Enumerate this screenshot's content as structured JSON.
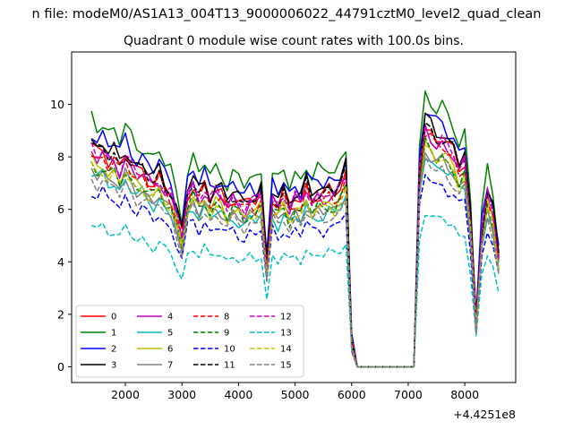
{
  "chart_data": {
    "type": "line",
    "suptitle": "n file: modeM0/AS1A13_004T13_9000006022_44791cztM0_level2_quad_clean",
    "title": "Quadrant 0 module wise count rates with 100.0s bins.",
    "xlabel": "",
    "ylabel": "",
    "x_offset_label": "+4.4251e8",
    "xlim": [
      1050,
      8900
    ],
    "ylim": [
      -0.6,
      12.0
    ],
    "x_ticks": [
      2000,
      3000,
      4000,
      5000,
      6000,
      7000,
      8000
    ],
    "y_ticks": [
      0,
      2,
      4,
      6,
      8,
      10
    ],
    "legend": {
      "placement": "lower-left",
      "columns": 4
    },
    "colors": {
      "0": "#ff0000",
      "1": "#008000",
      "2": "#0000ff",
      "3": "#000000",
      "4": "#bf00bf",
      "5": "#00bfbf",
      "6": "#bfbf00",
      "7": "#808080"
    },
    "series": [
      {
        "name": "0",
        "color": "#ff0000",
        "dashed": false,
        "scale": 1.0
      },
      {
        "name": "1",
        "color": "#008000",
        "dashed": false,
        "scale": 1.13
      },
      {
        "name": "2",
        "color": "#0000ff",
        "dashed": false,
        "scale": 1.07
      },
      {
        "name": "3",
        "color": "#000000",
        "dashed": false,
        "scale": 1.03
      },
      {
        "name": "4",
        "color": "#bf00bf",
        "dashed": false,
        "scale": 0.98
      },
      {
        "name": "5",
        "color": "#00bfbf",
        "dashed": false,
        "scale": 0.88
      },
      {
        "name": "6",
        "color": "#bfbf00",
        "dashed": false,
        "scale": 0.93
      },
      {
        "name": "7",
        "color": "#808080",
        "dashed": false,
        "scale": 0.9
      },
      {
        "name": "8",
        "color": "#ff0000",
        "dashed": true,
        "scale": 0.97
      },
      {
        "name": "9",
        "color": "#008000",
        "dashed": true,
        "scale": 0.92
      },
      {
        "name": "10",
        "color": "#0000ff",
        "dashed": true,
        "scale": 0.8
      },
      {
        "name": "11",
        "color": "#000000",
        "dashed": true,
        "scale": 1.01
      },
      {
        "name": "12",
        "color": "#bf00bf",
        "dashed": true,
        "scale": 0.99
      },
      {
        "name": "13",
        "color": "#00bfbf",
        "dashed": true,
        "scale": 0.65
      },
      {
        "name": "14",
        "color": "#bfbf00",
        "dashed": true,
        "scale": 0.91
      },
      {
        "name": "15",
        "color": "#808080",
        "dashed": true,
        "scale": 0.86
      }
    ],
    "x": [
      1400,
      1500,
      1600,
      1700,
      1800,
      1900,
      2000,
      2100,
      2200,
      2300,
      2400,
      2500,
      2600,
      2700,
      2800,
      2900,
      3000,
      3100,
      3200,
      3300,
      3400,
      3500,
      3600,
      3700,
      3800,
      3900,
      4000,
      4100,
      4200,
      4300,
      4400,
      4500,
      4600,
      4700,
      4800,
      4900,
      5000,
      5100,
      5200,
      5300,
      5400,
      5500,
      5600,
      5700,
      5800,
      5900,
      6000,
      6100,
      6200,
      6300,
      6400,
      6500,
      6600,
      6700,
      6800,
      6900,
      7000,
      7100,
      7200,
      7300,
      7400,
      7500,
      7600,
      7700,
      7800,
      7900,
      8000,
      8100,
      8200,
      8300,
      8400,
      8500,
      8600
    ],
    "base_profile": [
      8.4,
      8.1,
      8.3,
      7.9,
      8.0,
      7.6,
      8.1,
      7.7,
      7.4,
      7.5,
      7.2,
      7.0,
      7.3,
      6.8,
      6.6,
      5.9,
      5.1,
      6.6,
      7.0,
      6.5,
      6.9,
      6.4,
      6.7,
      6.6,
      6.2,
      6.5,
      6.3,
      6.1,
      6.4,
      6.3,
      6.6,
      3.9,
      6.5,
      6.2,
      6.6,
      6.1,
      6.5,
      6.3,
      6.9,
      6.4,
      6.6,
      6.5,
      6.7,
      6.6,
      6.9,
      7.4,
      0.9,
      0.0,
      0.0,
      0.0,
      0.0,
      0.0,
      0.0,
      0.0,
      0.0,
      0.0,
      0.0,
      0.0,
      7.5,
      9.2,
      8.9,
      8.6,
      8.7,
      8.4,
      8.2,
      7.6,
      7.9,
      5.6,
      1.6,
      5.2,
      6.6,
      5.9,
      4.2
    ]
  }
}
